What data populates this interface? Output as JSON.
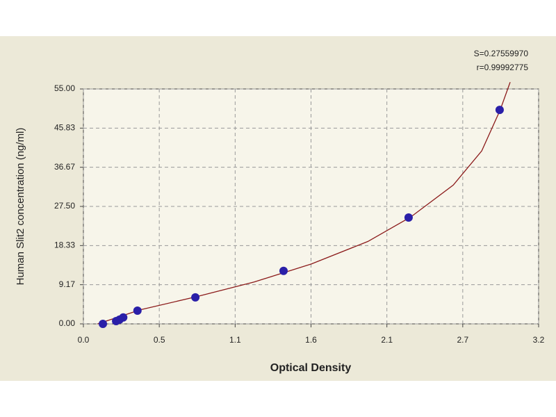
{
  "chart_data": {
    "type": "scatter",
    "annotations": [
      "S=0.27559970",
      "r=0.99992775"
    ],
    "x_label": "Optical Density",
    "y_label": "Human Slit2 concentration (ng/ml)",
    "x": [
      0.137,
      0.23,
      0.254,
      0.28,
      0.38,
      0.787,
      1.407,
      2.286,
      2.926
    ],
    "y": [
      0,
      0.65,
      1.0,
      1.5,
      3.1,
      6.2,
      12.4,
      24.9,
      50.1
    ],
    "color": "#2a1fa8",
    "curve": {
      "color": "#8b1a1a",
      "x": [
        0.1,
        0.4,
        0.8,
        1.2,
        1.6,
        2.0,
        2.3,
        2.6,
        2.8,
        2.93,
        3.0
      ],
      "y": [
        0,
        3.3,
        6.4,
        9.8,
        14.0,
        19.3,
        25.0,
        32.5,
        40.5,
        50.1,
        56.6
      ]
    },
    "xlim": [
      0,
      3.2
    ],
    "ylim": [
      0,
      55
    ],
    "xticks": [
      {
        "value": 0,
        "label": "0.0"
      },
      {
        "value": 0.5333,
        "label": "0.5"
      },
      {
        "value": 1.0667,
        "label": "1.1"
      },
      1.6,
      {
        "value": 2.1333,
        "label": "2.1"
      },
      {
        "value": 2.6667,
        "label": "2.7"
      },
      3.2
    ],
    "yticks": [
      {
        "value": 0,
        "label": "0.00"
      },
      9.17,
      18.33,
      {
        "value": 27.5,
        "label": "27.50"
      },
      36.67,
      45.83,
      {
        "value": 55,
        "label": "55.00"
      }
    ],
    "grid": true
  }
}
